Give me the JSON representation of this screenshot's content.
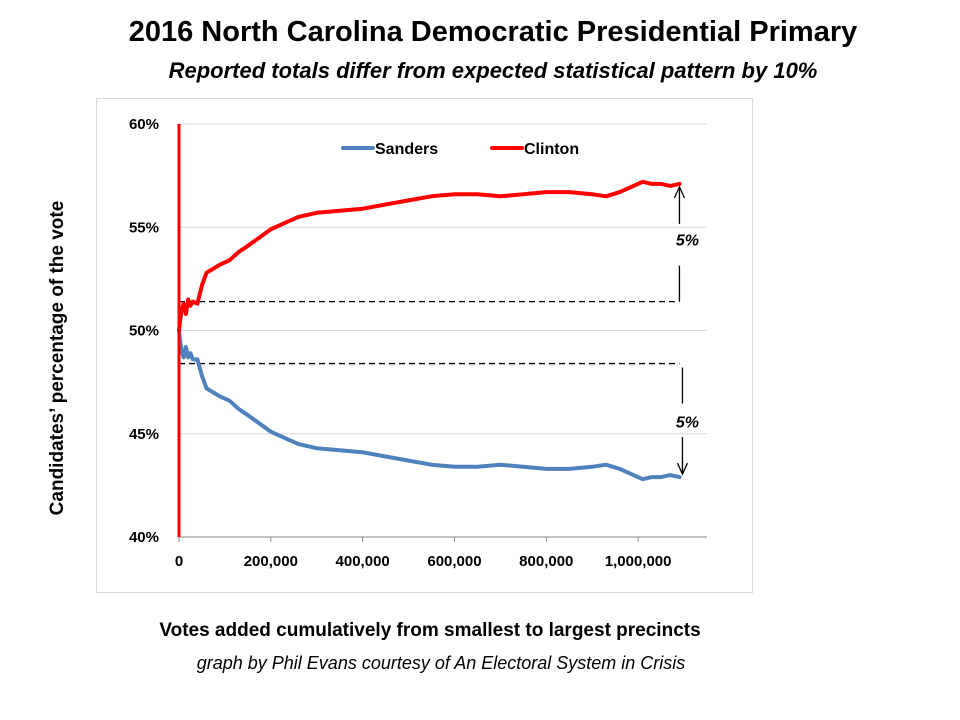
{
  "chart_data": {
    "type": "line",
    "title": "2016 North Carolina Democratic Presidential Primary",
    "subtitle": "Reported totals differ from expected statistical pattern by 10%",
    "xlabel": "Votes added cumulatively from smallest to largest precincts",
    "ylabel": "Candidates’ percentage of the vote",
    "xlim": [
      0,
      1150000
    ],
    "ylim": [
      40,
      60
    ],
    "x_ticks": [
      "0",
      "200,000",
      "400,000",
      "600,000",
      "800,000",
      "1,000,000"
    ],
    "y_ticks": [
      "40%",
      "45%",
      "50%",
      "55%",
      "60%"
    ],
    "grid": "horizontal",
    "legend": "top-center",
    "series": [
      {
        "name": "Sanders",
        "color": "#4f81bd",
        "x": [
          0,
          3000,
          6000,
          10000,
          15000,
          20000,
          25000,
          30000,
          40000,
          50000,
          60000,
          75000,
          90000,
          110000,
          130000,
          150000,
          175000,
          200000,
          230000,
          260000,
          300000,
          350000,
          400000,
          450000,
          500000,
          550000,
          600000,
          650000,
          700000,
          750000,
          800000,
          850000,
          900000,
          930000,
          960000,
          990000,
          1010000,
          1030000,
          1050000,
          1070000,
          1090000
        ],
        "values": [
          50.0,
          49.4,
          49.0,
          48.7,
          49.2,
          48.7,
          48.9,
          48.6,
          48.6,
          47.8,
          47.2,
          47.0,
          46.8,
          46.6,
          46.2,
          45.9,
          45.5,
          45.1,
          44.8,
          44.5,
          44.3,
          44.2,
          44.1,
          43.9,
          43.7,
          43.5,
          43.4,
          43.4,
          43.5,
          43.4,
          43.3,
          43.3,
          43.4,
          43.5,
          43.3,
          43.0,
          42.8,
          42.9,
          42.9,
          43.0,
          42.9
        ]
      },
      {
        "name": "Clinton",
        "color": "#ff0000",
        "x": [
          0,
          3000,
          6000,
          10000,
          15000,
          20000,
          25000,
          30000,
          40000,
          50000,
          60000,
          75000,
          90000,
          110000,
          130000,
          150000,
          175000,
          200000,
          230000,
          260000,
          300000,
          350000,
          400000,
          450000,
          500000,
          550000,
          600000,
          650000,
          700000,
          750000,
          800000,
          850000,
          900000,
          930000,
          960000,
          990000,
          1010000,
          1030000,
          1050000,
          1070000,
          1090000
        ],
        "values": [
          50.0,
          50.6,
          51.0,
          51.3,
          50.8,
          51.5,
          51.2,
          51.4,
          51.3,
          52.2,
          52.8,
          53.0,
          53.2,
          53.4,
          53.8,
          54.1,
          54.5,
          54.9,
          55.2,
          55.5,
          55.7,
          55.8,
          55.9,
          56.1,
          56.3,
          56.5,
          56.6,
          56.6,
          56.5,
          56.6,
          56.7,
          56.7,
          56.6,
          56.5,
          56.7,
          57.0,
          57.2,
          57.1,
          57.1,
          57.0,
          57.1
        ]
      }
    ],
    "reference_lines": [
      {
        "x": [
          0,
          1090000
        ],
        "y": 51.4
      },
      {
        "x": [
          0,
          1090000
        ],
        "y": 48.4
      }
    ],
    "annotations": [
      {
        "text": "5%",
        "x": 1090000,
        "y": 54.4
      },
      {
        "text": "5%",
        "x": 1090000,
        "y": 45.6
      }
    ]
  },
  "footer": {
    "credit": "graph by Phil Evans courtesy of An Electoral System in Crisis"
  }
}
